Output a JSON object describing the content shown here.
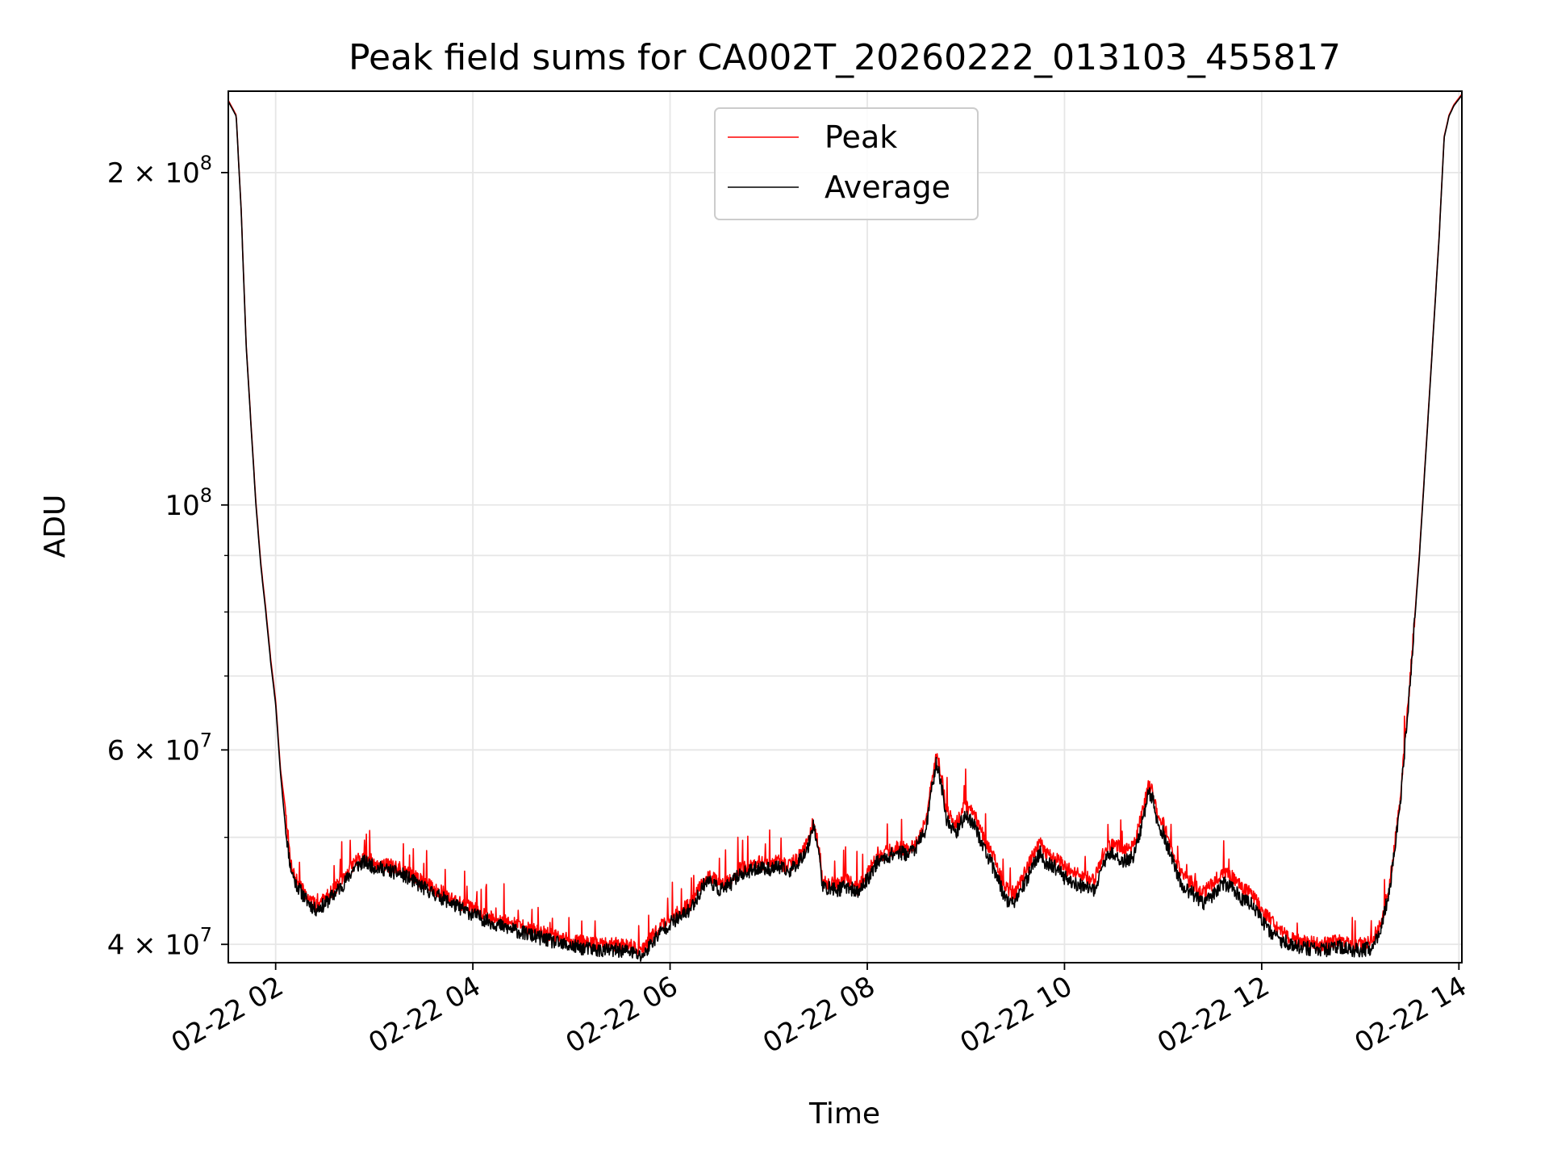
{
  "chart_data": {
    "type": "line",
    "title": "Peak field sums for CA002T_20260222_013103_455817",
    "xlabel": "Time",
    "ylabel": "ADU",
    "yscale": "log",
    "grid": true,
    "legend_position": "top-center",
    "colors": {
      "peak": "#ff0000",
      "average": "#000000",
      "grid": "#e6e6e6",
      "axes": "#000000",
      "legend_border": "#cccccc"
    },
    "xlim_hours": [
      1.52,
      14.03
    ],
    "ylim": [
      38500000,
      237000000
    ],
    "x_ticks": [
      {
        "value": 2,
        "label": "02-22 02"
      },
      {
        "value": 4,
        "label": "02-22 04"
      },
      {
        "value": 6,
        "label": "02-22 06"
      },
      {
        "value": 8,
        "label": "02-22 08"
      },
      {
        "value": 10,
        "label": "02-22 10"
      },
      {
        "value": 12,
        "label": "02-22 12"
      },
      {
        "value": 14,
        "label": "02-22 14"
      }
    ],
    "y_major_ticks": [
      {
        "value": 40000000,
        "mantissa": "4 × 10",
        "exponent": "7"
      },
      {
        "value": 60000000,
        "mantissa": "6 × 10",
        "exponent": "7"
      },
      {
        "value": 100000000,
        "mantissa": "10",
        "exponent": "8"
      },
      {
        "value": 200000000,
        "mantissa": "2 × 10",
        "exponent": "8"
      }
    ],
    "y_minor_ticks": [
      50000000,
      70000000,
      80000000,
      90000000
    ],
    "series": [
      {
        "name": "Average",
        "x": [
          1.52,
          1.6,
          1.65,
          1.7,
          1.75,
          1.8,
          1.85,
          1.9,
          1.95,
          2.0,
          2.05,
          2.1,
          2.15,
          2.2,
          2.3,
          2.4,
          2.5,
          2.6,
          2.7,
          2.8,
          2.9,
          3.0,
          3.1,
          3.2,
          3.3,
          3.5,
          3.7,
          3.9,
          4.1,
          4.3,
          4.5,
          4.7,
          4.9,
          5.1,
          5.3,
          5.5,
          5.6,
          5.7,
          5.75,
          5.8,
          5.9,
          6.0,
          6.1,
          6.2,
          6.3,
          6.35,
          6.4,
          6.5,
          6.6,
          6.7,
          6.8,
          6.9,
          7.0,
          7.1,
          7.2,
          7.3,
          7.4,
          7.45,
          7.5,
          7.55,
          7.6,
          7.7,
          7.8,
          7.9,
          8.0,
          8.1,
          8.2,
          8.3,
          8.4,
          8.5,
          8.6,
          8.65,
          8.7,
          8.75,
          8.8,
          8.9,
          9.0,
          9.1,
          9.2,
          9.3,
          9.4,
          9.5,
          9.6,
          9.7,
          9.75,
          9.8,
          9.9,
          10.0,
          10.1,
          10.2,
          10.3,
          10.4,
          10.5,
          10.6,
          10.7,
          10.8,
          10.85,
          10.9,
          10.95,
          11.0,
          11.1,
          11.2,
          11.3,
          11.4,
          11.5,
          11.6,
          11.7,
          11.8,
          11.9,
          12.0,
          12.1,
          12.2,
          12.3,
          12.4,
          12.5,
          12.6,
          12.7,
          12.8,
          12.9,
          13.0,
          13.1,
          13.2,
          13.3,
          13.4,
          13.5,
          13.6,
          13.7,
          13.8,
          13.85,
          13.9,
          13.95,
          14.03
        ],
        "y": [
          232000000,
          225000000,
          185000000,
          140000000,
          118000000,
          100000000,
          88000000,
          80000000,
          72000000,
          66000000,
          57000000,
          51000000,
          47000000,
          45500000,
          44000000,
          43000000,
          43500000,
          44500000,
          45500000,
          47000000,
          47500000,
          47000000,
          46800000,
          46500000,
          46200000,
          45000000,
          44000000,
          43000000,
          42200000,
          41500000,
          41000000,
          40500000,
          40000000,
          39700000,
          39500000,
          39500000,
          39400000,
          39000000,
          39300000,
          40000000,
          41000000,
          41800000,
          42300000,
          43000000,
          44500000,
          45500000,
          45700000,
          44800000,
          45200000,
          46300000,
          46500000,
          47000000,
          46800000,
          47000000,
          46500000,
          47500000,
          49000000,
          51500000,
          49000000,
          45000000,
          45000000,
          44800000,
          45200000,
          44500000,
          45800000,
          47500000,
          48000000,
          48500000,
          48300000,
          49000000,
          51000000,
          55000000,
          58500000,
          56000000,
          52000000,
          50500000,
          52500000,
          51000000,
          48500000,
          46500000,
          44000000,
          43500000,
          45500000,
          47500000,
          48500000,
          47500000,
          47000000,
          46000000,
          45500000,
          45000000,
          44700000,
          47500000,
          48500000,
          47500000,
          48000000,
          52000000,
          55000000,
          54000000,
          51000000,
          50500000,
          47500000,
          45000000,
          44500000,
          43500000,
          44300000,
          45500000,
          45000000,
          44000000,
          43500000,
          42000000,
          41000000,
          40300000,
          40000000,
          39800000,
          39600000,
          39500000,
          39600000,
          39800000,
          39500000,
          39500000,
          39700000,
          41000000,
          45000000,
          53000000,
          68000000,
          90000000,
          125000000,
          175000000,
          215000000,
          225000000,
          230000000,
          235000000
        ]
      },
      {
        "name": "Peak",
        "x": [
          1.52,
          1.6,
          1.65,
          1.7,
          1.75,
          1.8,
          1.85,
          1.9,
          1.95,
          2.0,
          2.05,
          2.1,
          2.15,
          2.2,
          2.3,
          2.4,
          2.5,
          2.6,
          2.7,
          2.8,
          2.9,
          3.0,
          3.1,
          3.2,
          3.3,
          3.5,
          3.7,
          3.9,
          4.1,
          4.3,
          4.5,
          4.7,
          4.9,
          5.1,
          5.3,
          5.5,
          5.6,
          5.7,
          5.75,
          5.8,
          5.9,
          6.0,
          6.1,
          6.2,
          6.3,
          6.35,
          6.4,
          6.5,
          6.6,
          6.7,
          6.8,
          6.9,
          7.0,
          7.1,
          7.2,
          7.3,
          7.4,
          7.45,
          7.5,
          7.55,
          7.6,
          7.7,
          7.8,
          7.9,
          8.0,
          8.1,
          8.2,
          8.3,
          8.4,
          8.5,
          8.6,
          8.65,
          8.7,
          8.75,
          8.8,
          8.9,
          9.0,
          9.1,
          9.2,
          9.3,
          9.4,
          9.5,
          9.6,
          9.7,
          9.75,
          9.8,
          9.9,
          10.0,
          10.1,
          10.2,
          10.3,
          10.4,
          10.5,
          10.6,
          10.7,
          10.8,
          10.85,
          10.9,
          10.95,
          11.0,
          11.1,
          11.2,
          11.3,
          11.4,
          11.5,
          11.6,
          11.7,
          11.8,
          11.9,
          12.0,
          12.1,
          12.2,
          12.3,
          12.4,
          12.5,
          12.6,
          12.7,
          12.8,
          12.9,
          13.0,
          13.1,
          13.2,
          13.3,
          13.4,
          13.5,
          13.6,
          13.7,
          13.8,
          13.85,
          13.9,
          13.95,
          14.03
        ],
        "y": [
          232500000,
          225500000,
          185500000,
          140500000,
          118500000,
          100500000,
          88500000,
          80500000,
          72500000,
          66500000,
          57500000,
          53000000,
          47500000,
          46000000,
          44400000,
          43400000,
          44000000,
          45000000,
          46000000,
          47500000,
          48000000,
          47500000,
          47300000,
          47000000,
          46700000,
          45500000,
          44500000,
          43500000,
          42700000,
          42000000,
          41500000,
          41000000,
          40500000,
          40200000,
          40000000,
          40000000,
          39900000,
          39500000,
          39800000,
          40500000,
          41500000,
          42300000,
          42800000,
          43500000,
          45000000,
          46000000,
          46200000,
          45300000,
          45700000,
          46800000,
          47000000,
          47500000,
          47300000,
          47500000,
          47000000,
          48000000,
          49500000,
          52000000,
          49500000,
          45500000,
          45500000,
          45300000,
          45700000,
          45000000,
          46300000,
          48000000,
          48500000,
          49000000,
          48800000,
          49500000,
          51800000,
          56000000,
          59500000,
          57000000,
          53000000,
          51500000,
          53500000,
          52000000,
          49500000,
          47500000,
          45000000,
          44500000,
          46500000,
          48500000,
          49500000,
          48500000,
          48000000,
          47000000,
          46500000,
          46000000,
          45700000,
          48500000,
          49500000,
          48500000,
          49000000,
          53000000,
          56000000,
          55000000,
          52000000,
          51500000,
          48500000,
          46000000,
          45500000,
          44500000,
          45300000,
          46500000,
          46000000,
          45000000,
          44500000,
          43000000,
          42000000,
          41000000,
          40500000,
          40300000,
          40100000,
          40000000,
          40100000,
          40300000,
          40000000,
          40000000,
          40200000,
          41500000,
          45500000,
          53500000,
          68500000,
          90500000,
          125500000,
          175500000,
          215500000,
          225500000,
          230500000,
          235500000
        ]
      }
    ]
  }
}
